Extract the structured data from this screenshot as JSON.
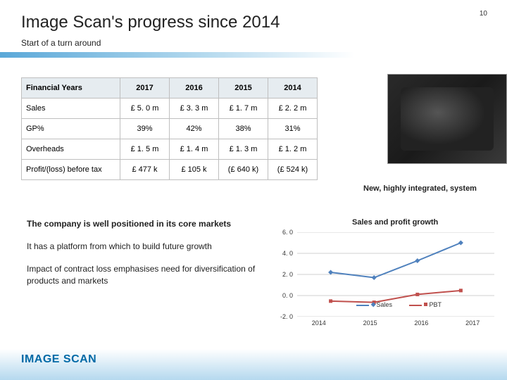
{
  "page_number": "10",
  "title": "Image Scan's progress since 2014",
  "subtitle": "Start of a turn around",
  "table": {
    "headers": [
      "Financial Years",
      "2017",
      "2016",
      "2015",
      "2014"
    ],
    "rows": [
      [
        "Sales",
        "£ 5. 0 m",
        "£ 3. 3 m",
        "£ 1. 7 m",
        "£ 2. 2 m"
      ],
      [
        "GP%",
        "39%",
        "42%",
        "38%",
        "31%"
      ],
      [
        "Overheads",
        "£ 1. 5 m",
        "£ 1. 4 m",
        "£ 1. 3 m",
        "£ 1. 2 m"
      ],
      [
        "Profit/(loss) before tax",
        "£ 477 k",
        "£ 105 k",
        "(£ 640 k)",
        "(£ 524 k)"
      ]
    ],
    "header_bg": "#e6ecf0",
    "border_color": "#bfbfbf"
  },
  "image_caption": "New, highly integrated, system",
  "bullets": [
    {
      "text": "The company is well positioned in its core markets",
      "bold": true
    },
    {
      "text": "It has a platform from which to build future growth",
      "bold": false
    },
    {
      "text": "Impact of contract loss emphasises need for diversification of products and markets",
      "bold": false
    }
  ],
  "chart": {
    "type": "line",
    "title": "Sales and profit growth",
    "x_categories": [
      "2014",
      "2015",
      "2016",
      "2017"
    ],
    "ylim": [
      -2.0,
      6.0
    ],
    "yticks": [
      6.0,
      4.0,
      2.0,
      0.0,
      -2.0
    ],
    "ytick_labels": [
      "6. 0",
      "4. 0",
      "2. 0",
      "0. 0",
      "-2. 0"
    ],
    "series": [
      {
        "name": "Sales",
        "color": "#4f81bd",
        "marker": "diamond",
        "values": [
          2.2,
          1.7,
          3.3,
          5.0
        ]
      },
      {
        "name": "PBT",
        "color": "#c0504d",
        "marker": "square",
        "values": [
          -0.524,
          -0.64,
          0.105,
          0.477
        ]
      }
    ],
    "grid_color": "#d0d0d0",
    "background_color": "#ffffff",
    "title_fontsize": 11,
    "axis_fontsize": 9
  },
  "logo_text": "IMAGE SCAN",
  "logo_color": "#0069a6"
}
